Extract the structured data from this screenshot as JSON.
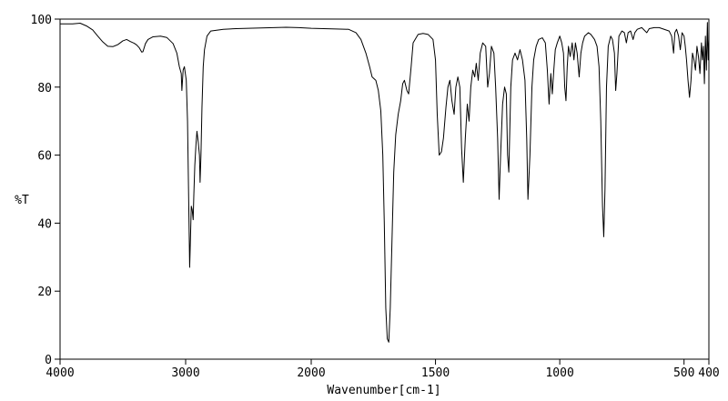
{
  "chart_data": {
    "type": "line",
    "title": "",
    "xlabel": "Wavenumber[cm-1]",
    "ylabel": "%T",
    "xlim": [
      4000,
      400
    ],
    "ylim": [
      0,
      100
    ],
    "x_reversed": true,
    "grid": false,
    "legend": "none",
    "x_ticks": [
      4000,
      3000,
      2000,
      1500,
      1000,
      500,
      400
    ],
    "x_tick_labels": [
      "4000",
      "3000",
      "2000",
      "1500",
      "1000",
      "500",
      "400"
    ],
    "y_ticks": [
      0,
      20,
      40,
      60,
      80,
      100
    ],
    "y_tick_labels": [
      "0",
      "20",
      "40",
      "60",
      "80",
      "100"
    ],
    "series": [
      {
        "color": "#000000",
        "points": [
          [
            4000,
            98.6
          ],
          [
            3900,
            98.6
          ],
          [
            3840,
            98.8
          ],
          [
            3790,
            98.0
          ],
          [
            3740,
            96.8
          ],
          [
            3700,
            95.0
          ],
          [
            3660,
            93.3
          ],
          [
            3620,
            92.0
          ],
          [
            3580,
            91.9
          ],
          [
            3540,
            92.5
          ],
          [
            3500,
            93.6
          ],
          [
            3470,
            94.0
          ],
          [
            3440,
            93.4
          ],
          [
            3410,
            92.9
          ],
          [
            3390,
            92.4
          ],
          [
            3370,
            91.6
          ],
          [
            3350,
            90.3
          ],
          [
            3340,
            90.4
          ],
          [
            3320,
            92.8
          ],
          [
            3300,
            94.0
          ],
          [
            3260,
            94.8
          ],
          [
            3200,
            95.0
          ],
          [
            3150,
            94.6
          ],
          [
            3100,
            92.8
          ],
          [
            3070,
            90.0
          ],
          [
            3050,
            86.0
          ],
          [
            3035,
            84.0
          ],
          [
            3030,
            79.0
          ],
          [
            3020,
            85.0
          ],
          [
            3010,
            86.0
          ],
          [
            2995,
            82.0
          ],
          [
            2985,
            70.0
          ],
          [
            2975,
            45.0
          ],
          [
            2968,
            27.0
          ],
          [
            2962,
            35.0
          ],
          [
            2955,
            45.0
          ],
          [
            2948,
            44.0
          ],
          [
            2940,
            41.0
          ],
          [
            2935,
            48.0
          ],
          [
            2927,
            57.0
          ],
          [
            2918,
            63.0
          ],
          [
            2910,
            67.0
          ],
          [
            2900,
            64.0
          ],
          [
            2890,
            60.0
          ],
          [
            2885,
            52.0
          ],
          [
            2878,
            60.0
          ],
          [
            2870,
            74.0
          ],
          [
            2860,
            86.0
          ],
          [
            2850,
            91.0
          ],
          [
            2830,
            95.0
          ],
          [
            2800,
            96.5
          ],
          [
            2700,
            97.0
          ],
          [
            2600,
            97.2
          ],
          [
            2500,
            97.3
          ],
          [
            2400,
            97.4
          ],
          [
            2300,
            97.5
          ],
          [
            2200,
            97.6
          ],
          [
            2100,
            97.5
          ],
          [
            2000,
            97.3
          ],
          [
            1900,
            97.1
          ],
          [
            1850,
            97.0
          ],
          [
            1820,
            96.0
          ],
          [
            1800,
            94.0
          ],
          [
            1780,
            90.0
          ],
          [
            1765,
            86.0
          ],
          [
            1755,
            83.0
          ],
          [
            1740,
            82.0
          ],
          [
            1730,
            79.0
          ],
          [
            1720,
            73.0
          ],
          [
            1712,
            60.0
          ],
          [
            1706,
            40.0
          ],
          [
            1700,
            15.0
          ],
          [
            1694,
            6.0
          ],
          [
            1688,
            5.0
          ],
          [
            1682,
            15.0
          ],
          [
            1675,
            35.0
          ],
          [
            1668,
            55.0
          ],
          [
            1660,
            66.0
          ],
          [
            1650,
            72.0
          ],
          [
            1640,
            76.0
          ],
          [
            1632,
            81.0
          ],
          [
            1625,
            82.0
          ],
          [
            1615,
            79.0
          ],
          [
            1608,
            78.0
          ],
          [
            1598,
            86.0
          ],
          [
            1590,
            93.0
          ],
          [
            1570,
            95.5
          ],
          [
            1550,
            95.8
          ],
          [
            1530,
            95.5
          ],
          [
            1510,
            94.0
          ],
          [
            1500,
            88.0
          ],
          [
            1493,
            72.0
          ],
          [
            1485,
            60.0
          ],
          [
            1476,
            61.0
          ],
          [
            1468,
            65.0
          ],
          [
            1458,
            74.0
          ],
          [
            1450,
            80.0
          ],
          [
            1442,
            82.0
          ],
          [
            1434,
            76.0
          ],
          [
            1425,
            72.0
          ],
          [
            1418,
            80.0
          ],
          [
            1410,
            83.0
          ],
          [
            1402,
            80.0
          ],
          [
            1395,
            62.0
          ],
          [
            1388,
            52.0
          ],
          [
            1380,
            65.0
          ],
          [
            1372,
            75.0
          ],
          [
            1365,
            70.0
          ],
          [
            1358,
            80.0
          ],
          [
            1350,
            85.0
          ],
          [
            1342,
            83.0
          ],
          [
            1336,
            87.0
          ],
          [
            1328,
            82.0
          ],
          [
            1320,
            90.0
          ],
          [
            1310,
            93.0
          ],
          [
            1298,
            92.0
          ],
          [
            1290,
            80.0
          ],
          [
            1283,
            84.0
          ],
          [
            1275,
            92.0
          ],
          [
            1265,
            90.0
          ],
          [
            1258,
            80.0
          ],
          [
            1250,
            65.0
          ],
          [
            1244,
            47.0
          ],
          [
            1238,
            60.0
          ],
          [
            1230,
            75.0
          ],
          [
            1222,
            80.0
          ],
          [
            1215,
            78.0
          ],
          [
            1210,
            60.0
          ],
          [
            1205,
            55.0
          ],
          [
            1197,
            80.0
          ],
          [
            1190,
            88.0
          ],
          [
            1180,
            90.0
          ],
          [
            1170,
            88.0
          ],
          [
            1160,
            91.0
          ],
          [
            1150,
            88.0
          ],
          [
            1140,
            82.0
          ],
          [
            1133,
            65.0
          ],
          [
            1128,
            47.0
          ],
          [
            1120,
            60.0
          ],
          [
            1112,
            80.0
          ],
          [
            1105,
            88.0
          ],
          [
            1095,
            92.0
          ],
          [
            1085,
            94.0
          ],
          [
            1070,
            94.5
          ],
          [
            1058,
            93.0
          ],
          [
            1050,
            85.0
          ],
          [
            1043,
            75.0
          ],
          [
            1036,
            84.0
          ],
          [
            1030,
            78.0
          ],
          [
            1024,
            85.0
          ],
          [
            1018,
            91.0
          ],
          [
            1010,
            93.0
          ],
          [
            1000,
            95.0
          ],
          [
            992,
            93.0
          ],
          [
            985,
            90.0
          ],
          [
            980,
            80.0
          ],
          [
            975,
            76.0
          ],
          [
            970,
            86.0
          ],
          [
            965,
            92.0
          ],
          [
            958,
            89.0
          ],
          [
            950,
            93.0
          ],
          [
            943,
            88.0
          ],
          [
            937,
            93.0
          ],
          [
            930,
            90.0
          ],
          [
            922,
            83.0
          ],
          [
            915,
            90.0
          ],
          [
            908,
            93.0
          ],
          [
            900,
            95.0
          ],
          [
            885,
            96.0
          ],
          [
            875,
            95.5
          ],
          [
            860,
            94.0
          ],
          [
            850,
            92.0
          ],
          [
            842,
            86.0
          ],
          [
            835,
            70.0
          ],
          [
            828,
            45.0
          ],
          [
            823,
            36.0
          ],
          [
            818,
            50.0
          ],
          [
            812,
            80.0
          ],
          [
            805,
            92.0
          ],
          [
            795,
            95.0
          ],
          [
            788,
            94.0
          ],
          [
            780,
            90.0
          ],
          [
            775,
            79.0
          ],
          [
            770,
            84.0
          ],
          [
            762,
            95.0
          ],
          [
            750,
            96.5
          ],
          [
            740,
            96.0
          ],
          [
            732,
            93.0
          ],
          [
            725,
            96.0
          ],
          [
            715,
            96.5
          ],
          [
            705,
            94.0
          ],
          [
            698,
            96.0
          ],
          [
            688,
            97.0
          ],
          [
            670,
            97.5
          ],
          [
            650,
            96.0
          ],
          [
            640,
            97.2
          ],
          [
            620,
            97.5
          ],
          [
            600,
            97.5
          ],
          [
            580,
            97.0
          ],
          [
            560,
            96.5
          ],
          [
            550,
            95.0
          ],
          [
            542,
            90.0
          ],
          [
            537,
            96.0
          ],
          [
            530,
            97.0
          ],
          [
            522,
            95.0
          ],
          [
            515,
            91.0
          ],
          [
            508,
            96.0
          ],
          [
            500,
            95.0
          ],
          [
            495,
            92.0
          ],
          [
            490,
            88.0
          ],
          [
            484,
            82.0
          ],
          [
            478,
            77.0
          ],
          [
            472,
            82.0
          ],
          [
            466,
            90.0
          ],
          [
            460,
            88.0
          ],
          [
            454,
            85.0
          ],
          [
            448,
            92.0
          ],
          [
            442,
            89.0
          ],
          [
            436,
            84.0
          ],
          [
            430,
            93.0
          ],
          [
            426,
            88.0
          ],
          [
            422,
            92.0
          ],
          [
            418,
            81.0
          ],
          [
            414,
            95.0
          ],
          [
            410,
            85.0
          ],
          [
            406,
            99.0
          ],
          [
            403,
            88.0
          ],
          [
            400,
            94.0
          ]
        ]
      }
    ]
  }
}
